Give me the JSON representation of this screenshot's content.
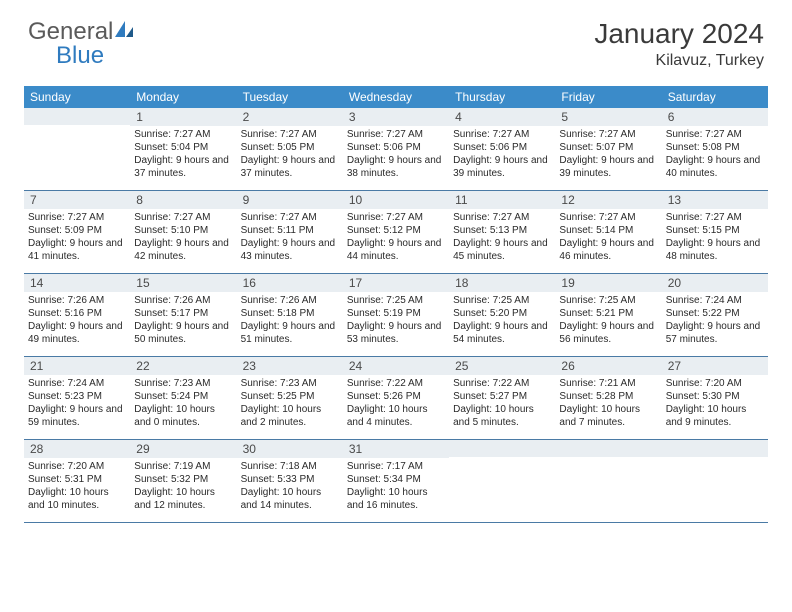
{
  "logo": {
    "general": "General",
    "blue": "Blue"
  },
  "title": {
    "month": "January 2024",
    "location": "Kilavuz, Turkey"
  },
  "colors": {
    "header_bg": "#3b8bc9",
    "daynum_bg": "#e9eef2",
    "rule": "#4a7aa5",
    "logo_gray": "#5a5a5a",
    "logo_blue": "#2f7bbf"
  },
  "day_headers": [
    "Sunday",
    "Monday",
    "Tuesday",
    "Wednesday",
    "Thursday",
    "Friday",
    "Saturday"
  ],
  "weeks": [
    [
      {
        "n": "",
        "sr": "",
        "ss": "",
        "dl": ""
      },
      {
        "n": "1",
        "sr": "7:27 AM",
        "ss": "5:04 PM",
        "dl": "9 hours and 37 minutes."
      },
      {
        "n": "2",
        "sr": "7:27 AM",
        "ss": "5:05 PM",
        "dl": "9 hours and 37 minutes."
      },
      {
        "n": "3",
        "sr": "7:27 AM",
        "ss": "5:06 PM",
        "dl": "9 hours and 38 minutes."
      },
      {
        "n": "4",
        "sr": "7:27 AM",
        "ss": "5:06 PM",
        "dl": "9 hours and 39 minutes."
      },
      {
        "n": "5",
        "sr": "7:27 AM",
        "ss": "5:07 PM",
        "dl": "9 hours and 39 minutes."
      },
      {
        "n": "6",
        "sr": "7:27 AM",
        "ss": "5:08 PM",
        "dl": "9 hours and 40 minutes."
      }
    ],
    [
      {
        "n": "7",
        "sr": "7:27 AM",
        "ss": "5:09 PM",
        "dl": "9 hours and 41 minutes."
      },
      {
        "n": "8",
        "sr": "7:27 AM",
        "ss": "5:10 PM",
        "dl": "9 hours and 42 minutes."
      },
      {
        "n": "9",
        "sr": "7:27 AM",
        "ss": "5:11 PM",
        "dl": "9 hours and 43 minutes."
      },
      {
        "n": "10",
        "sr": "7:27 AM",
        "ss": "5:12 PM",
        "dl": "9 hours and 44 minutes."
      },
      {
        "n": "11",
        "sr": "7:27 AM",
        "ss": "5:13 PM",
        "dl": "9 hours and 45 minutes."
      },
      {
        "n": "12",
        "sr": "7:27 AM",
        "ss": "5:14 PM",
        "dl": "9 hours and 46 minutes."
      },
      {
        "n": "13",
        "sr": "7:27 AM",
        "ss": "5:15 PM",
        "dl": "9 hours and 48 minutes."
      }
    ],
    [
      {
        "n": "14",
        "sr": "7:26 AM",
        "ss": "5:16 PM",
        "dl": "9 hours and 49 minutes."
      },
      {
        "n": "15",
        "sr": "7:26 AM",
        "ss": "5:17 PM",
        "dl": "9 hours and 50 minutes."
      },
      {
        "n": "16",
        "sr": "7:26 AM",
        "ss": "5:18 PM",
        "dl": "9 hours and 51 minutes."
      },
      {
        "n": "17",
        "sr": "7:25 AM",
        "ss": "5:19 PM",
        "dl": "9 hours and 53 minutes."
      },
      {
        "n": "18",
        "sr": "7:25 AM",
        "ss": "5:20 PM",
        "dl": "9 hours and 54 minutes."
      },
      {
        "n": "19",
        "sr": "7:25 AM",
        "ss": "5:21 PM",
        "dl": "9 hours and 56 minutes."
      },
      {
        "n": "20",
        "sr": "7:24 AM",
        "ss": "5:22 PM",
        "dl": "9 hours and 57 minutes."
      }
    ],
    [
      {
        "n": "21",
        "sr": "7:24 AM",
        "ss": "5:23 PM",
        "dl": "9 hours and 59 minutes."
      },
      {
        "n": "22",
        "sr": "7:23 AM",
        "ss": "5:24 PM",
        "dl": "10 hours and 0 minutes."
      },
      {
        "n": "23",
        "sr": "7:23 AM",
        "ss": "5:25 PM",
        "dl": "10 hours and 2 minutes."
      },
      {
        "n": "24",
        "sr": "7:22 AM",
        "ss": "5:26 PM",
        "dl": "10 hours and 4 minutes."
      },
      {
        "n": "25",
        "sr": "7:22 AM",
        "ss": "5:27 PM",
        "dl": "10 hours and 5 minutes."
      },
      {
        "n": "26",
        "sr": "7:21 AM",
        "ss": "5:28 PM",
        "dl": "10 hours and 7 minutes."
      },
      {
        "n": "27",
        "sr": "7:20 AM",
        "ss": "5:30 PM",
        "dl": "10 hours and 9 minutes."
      }
    ],
    [
      {
        "n": "28",
        "sr": "7:20 AM",
        "ss": "5:31 PM",
        "dl": "10 hours and 10 minutes."
      },
      {
        "n": "29",
        "sr": "7:19 AM",
        "ss": "5:32 PM",
        "dl": "10 hours and 12 minutes."
      },
      {
        "n": "30",
        "sr": "7:18 AM",
        "ss": "5:33 PM",
        "dl": "10 hours and 14 minutes."
      },
      {
        "n": "31",
        "sr": "7:17 AM",
        "ss": "5:34 PM",
        "dl": "10 hours and 16 minutes."
      },
      {
        "n": "",
        "sr": "",
        "ss": "",
        "dl": ""
      },
      {
        "n": "",
        "sr": "",
        "ss": "",
        "dl": ""
      },
      {
        "n": "",
        "sr": "",
        "ss": "",
        "dl": ""
      }
    ]
  ],
  "labels": {
    "sunrise": "Sunrise: ",
    "sunset": "Sunset: ",
    "daylight": "Daylight: "
  }
}
